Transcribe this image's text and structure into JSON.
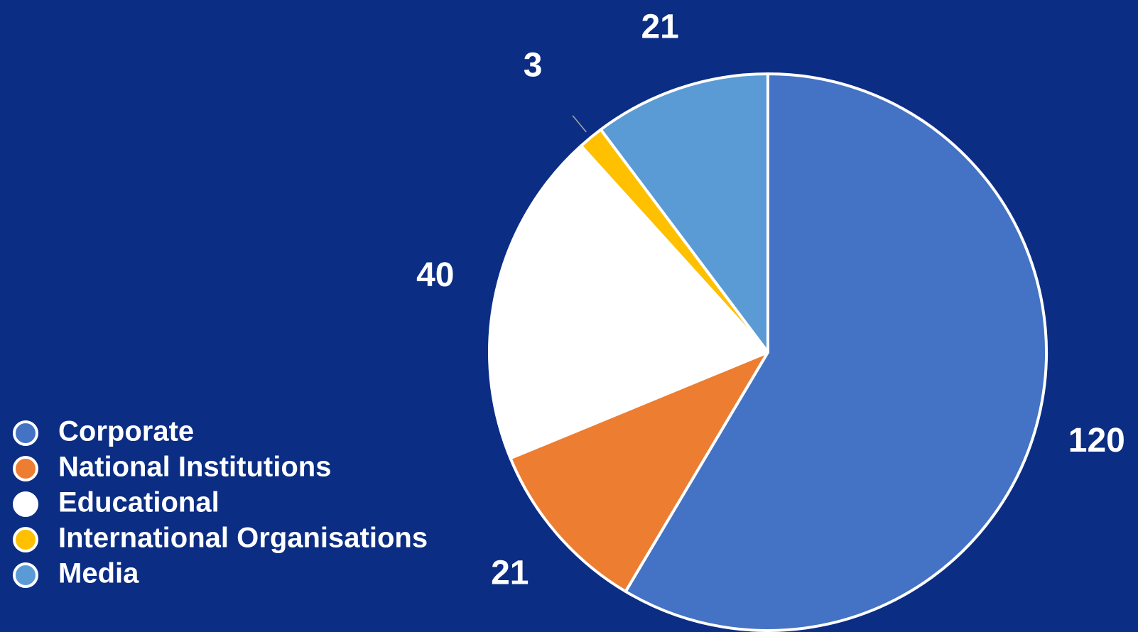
{
  "chart_data": {
    "type": "pie",
    "categories": [
      "Corporate",
      "National Institutions",
      "Educational",
      "International Organisations",
      "Media"
    ],
    "values": [
      120,
      21,
      40,
      3,
      21
    ],
    "colors": [
      "#4472c4",
      "#ed7d31",
      "#ffffff",
      "#ffc000",
      "#5b9bd5"
    ],
    "legend": "left"
  }
}
